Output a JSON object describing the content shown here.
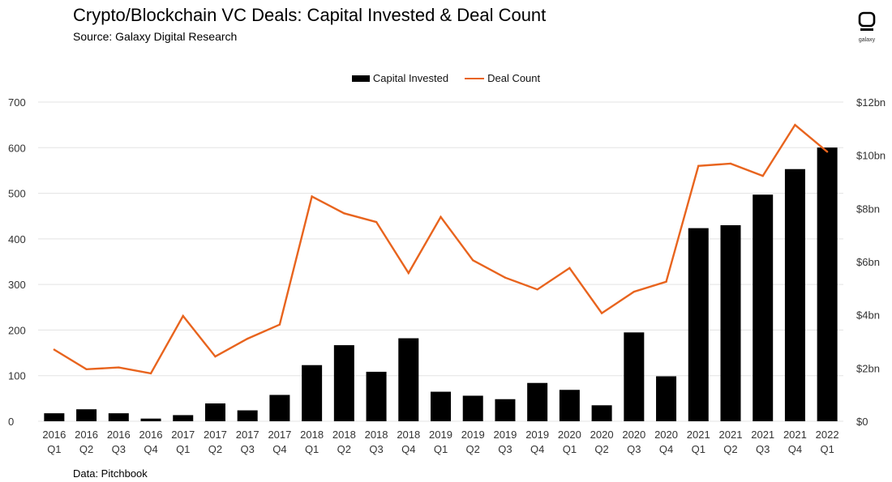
{
  "header": {
    "title": "Crypto/Blockchain VC Deals: Capital Invested & Deal Count",
    "subtitle": "Source: Galaxy Digital Research",
    "logo_text": "galaxy"
  },
  "footer": {
    "note": "Data: Pitchbook"
  },
  "colors": {
    "bar": "#000000",
    "line": "#E8641E",
    "grid": "#e3e3e3"
  },
  "chart_data": {
    "type": "bar+line",
    "title": "Crypto/Blockchain VC Deals: Capital Invested & Deal Count",
    "categories": [
      [
        "2016",
        "Q1"
      ],
      [
        "2016",
        "Q2"
      ],
      [
        "2016",
        "Q3"
      ],
      [
        "2016",
        "Q4"
      ],
      [
        "2017",
        "Q1"
      ],
      [
        "2017",
        "Q2"
      ],
      [
        "2017",
        "Q3"
      ],
      [
        "2017",
        "Q4"
      ],
      [
        "2018",
        "Q1"
      ],
      [
        "2018",
        "Q2"
      ],
      [
        "2018",
        "Q3"
      ],
      [
        "2018",
        "Q4"
      ],
      [
        "2019",
        "Q1"
      ],
      [
        "2019",
        "Q2"
      ],
      [
        "2019",
        "Q3"
      ],
      [
        "2019",
        "Q4"
      ],
      [
        "2020",
        "Q1"
      ],
      [
        "2020",
        "Q2"
      ],
      [
        "2020",
        "Q3"
      ],
      [
        "2020",
        "Q4"
      ],
      [
        "2021",
        "Q1"
      ],
      [
        "2021",
        "Q2"
      ],
      [
        "2021",
        "Q3"
      ],
      [
        "2021",
        "Q4"
      ],
      [
        "2022",
        "Q1"
      ]
    ],
    "series": [
      {
        "name": "Capital Invested",
        "type": "bar",
        "axis": "right",
        "unit": "$bn",
        "values": [
          0.3,
          0.45,
          0.3,
          0.1,
          0.23,
          0.67,
          0.41,
          0.99,
          2.11,
          2.86,
          1.86,
          3.12,
          1.11,
          0.96,
          0.83,
          1.44,
          1.18,
          0.6,
          3.34,
          1.69,
          7.26,
          7.37,
          8.52,
          9.48,
          10.29
        ]
      },
      {
        "name": "Deal Count",
        "type": "line",
        "axis": "left",
        "values": [
          157,
          114,
          118,
          105,
          231,
          142,
          181,
          212,
          493,
          456,
          437,
          325,
          448,
          353,
          315,
          289,
          336,
          237,
          284,
          306,
          560,
          565,
          538,
          650,
          591
        ]
      }
    ],
    "y_left": {
      "min": 0,
      "max": 700,
      "ticks": [
        "0",
        "100",
        "200",
        "300",
        "400",
        "500",
        "600",
        "700"
      ]
    },
    "y_right": {
      "min": 0,
      "max": 12,
      "ticks": [
        "$0",
        "$2bn",
        "$4bn",
        "$6bn",
        "$8bn",
        "$10bn",
        "$12bn"
      ]
    },
    "legend": [
      "Capital Invested",
      "Deal Count"
    ],
    "legend_position": "top-center",
    "grid": true
  }
}
